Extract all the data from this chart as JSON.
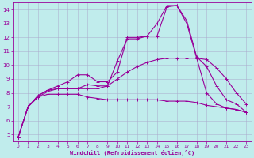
{
  "xlabel": "Windchill (Refroidissement éolien,°C)",
  "bg_color": "#c0ecec",
  "grid_color": "#aaaacc",
  "line_color": "#990099",
  "xlim": [
    -0.5,
    23.5
  ],
  "ylim": [
    4.5,
    14.5
  ],
  "xticks": [
    0,
    1,
    2,
    3,
    4,
    5,
    6,
    7,
    8,
    9,
    10,
    11,
    12,
    13,
    14,
    15,
    16,
    17,
    18,
    19,
    20,
    21,
    22,
    23
  ],
  "yticks": [
    5,
    6,
    7,
    8,
    9,
    10,
    11,
    12,
    13,
    14
  ],
  "lines": [
    {
      "x": [
        0,
        1,
        2,
        3,
        4,
        5,
        6,
        7,
        8,
        9,
        10,
        11,
        12,
        13,
        14,
        15,
        16,
        17,
        18,
        19,
        20,
        21,
        22,
        23
      ],
      "y": [
        4.8,
        7.0,
        7.7,
        8.1,
        8.3,
        8.3,
        8.3,
        8.6,
        8.5,
        8.5,
        10.3,
        11.9,
        11.9,
        12.1,
        13.0,
        14.3,
        14.3,
        13.0,
        10.5,
        8.0,
        7.2,
        6.9,
        6.8,
        6.6
      ]
    },
    {
      "x": [
        0,
        1,
        2,
        3,
        4,
        5,
        6,
        7,
        8,
        9,
        10,
        11,
        12,
        13,
        14,
        15,
        16,
        17,
        18,
        19,
        20,
        21,
        22,
        23
      ],
      "y": [
        4.8,
        7.0,
        7.8,
        8.2,
        8.5,
        8.8,
        9.3,
        9.3,
        8.8,
        8.8,
        9.5,
        12.0,
        12.0,
        12.1,
        12.1,
        14.2,
        14.3,
        13.2,
        10.6,
        9.9,
        8.5,
        7.5,
        7.2,
        6.6
      ]
    },
    {
      "x": [
        0,
        1,
        2,
        3,
        4,
        5,
        6,
        7,
        8,
        9,
        10,
        11,
        12,
        13,
        14,
        15,
        16,
        17,
        18,
        19,
        20,
        21,
        22,
        23
      ],
      "y": [
        4.8,
        7.0,
        7.8,
        8.2,
        8.3,
        8.3,
        8.3,
        8.3,
        8.3,
        8.5,
        9.0,
        9.5,
        9.9,
        10.2,
        10.4,
        10.5,
        10.5,
        10.5,
        10.5,
        10.4,
        9.8,
        9.0,
        8.0,
        7.2
      ]
    },
    {
      "x": [
        0,
        1,
        2,
        3,
        4,
        5,
        6,
        7,
        8,
        9,
        10,
        11,
        12,
        13,
        14,
        15,
        16,
        17,
        18,
        19,
        20,
        21,
        22,
        23
      ],
      "y": [
        4.8,
        7.0,
        7.7,
        7.9,
        7.9,
        7.9,
        7.9,
        7.7,
        7.6,
        7.5,
        7.5,
        7.5,
        7.5,
        7.5,
        7.5,
        7.4,
        7.4,
        7.4,
        7.3,
        7.1,
        7.0,
        6.9,
        6.8,
        6.6
      ]
    }
  ]
}
